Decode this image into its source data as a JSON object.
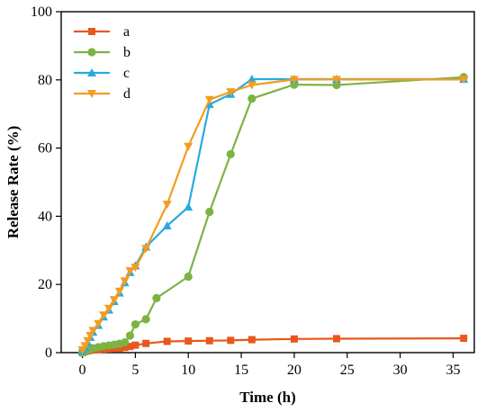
{
  "chart_data": {
    "type": "line",
    "xlabel": "Time (h)",
    "ylabel": "Release Rate (%)",
    "xlim": [
      -2,
      37
    ],
    "ylim": [
      0,
      100
    ],
    "xticks": [
      0,
      5,
      10,
      15,
      20,
      25,
      30,
      35
    ],
    "yticks": [
      0,
      20,
      40,
      60,
      80,
      100
    ],
    "grid": false,
    "legend_position": "top-left",
    "series": [
      {
        "name": "a",
        "color": "#e8571c",
        "marker": "square",
        "x": [
          0,
          0.25,
          0.5,
          0.75,
          1,
          1.5,
          2,
          2.5,
          3,
          3.5,
          4,
          4.5,
          5,
          6,
          8,
          10,
          12,
          14,
          16,
          20,
          24,
          36
        ],
        "y": [
          0,
          0.3,
          0.5,
          0.7,
          0.8,
          0.9,
          1.0,
          1.1,
          1.2,
          1.3,
          1.5,
          1.8,
          2.2,
          2.7,
          3.3,
          3.4,
          3.5,
          3.6,
          3.8,
          4.0,
          4.1,
          4.2
        ]
      },
      {
        "name": "b",
        "color": "#7cb342",
        "marker": "circle",
        "x": [
          0,
          0.25,
          0.5,
          0.75,
          1,
          1.5,
          2,
          2.5,
          3,
          3.5,
          4,
          4.5,
          5,
          6,
          7,
          10,
          12,
          14,
          16,
          20,
          24,
          36
        ],
        "y": [
          0,
          0.4,
          0.7,
          1.0,
          1.3,
          1.6,
          1.9,
          2.1,
          2.3,
          2.6,
          3.0,
          5.0,
          8.3,
          9.8,
          16.0,
          22.3,
          41.3,
          58.2,
          74.5,
          78.6,
          78.5,
          80.8
        ]
      },
      {
        "name": "c",
        "color": "#29a9e0",
        "marker": "triangle-up",
        "x": [
          0,
          0.25,
          0.5,
          0.75,
          1,
          1.5,
          2,
          2.5,
          3,
          3.5,
          4,
          4.5,
          5,
          6,
          8,
          10,
          12,
          14,
          16,
          20,
          24,
          36
        ],
        "y": [
          0.5,
          1.5,
          3.0,
          4.5,
          6.0,
          8.0,
          10.5,
          12.5,
          15.0,
          17.5,
          20.5,
          23.5,
          25.5,
          31.0,
          37.2,
          42.7,
          72.8,
          75.8,
          80.2,
          80.2,
          80.2,
          80.2
        ]
      },
      {
        "name": "d",
        "color": "#f39c1f",
        "marker": "triangle-down",
        "x": [
          0,
          0.25,
          0.5,
          0.75,
          1,
          1.5,
          2,
          2.5,
          3,
          3.5,
          4,
          4.5,
          5,
          6,
          8,
          10,
          12,
          14,
          16,
          20,
          24,
          36
        ],
        "y": [
          0.8,
          2.0,
          3.5,
          5.0,
          6.5,
          8.5,
          11.0,
          13.0,
          15.5,
          18.0,
          21.0,
          24.0,
          25.0,
          30.5,
          43.5,
          60.5,
          74.2,
          76.5,
          78.5,
          80.1,
          80.1,
          80.1
        ]
      }
    ]
  }
}
